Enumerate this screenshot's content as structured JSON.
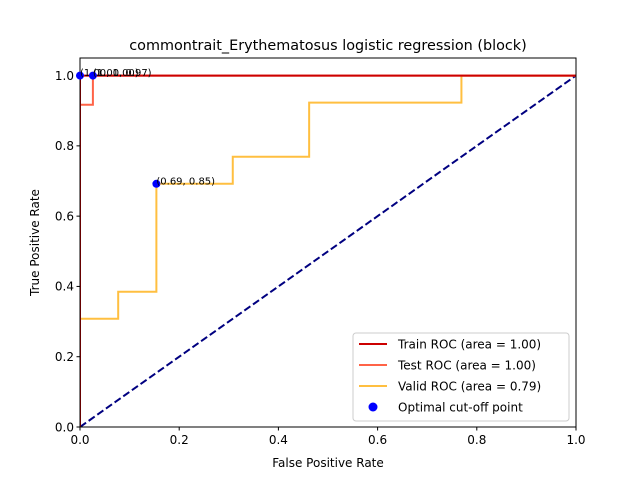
{
  "chart_data": {
    "type": "line",
    "title": "commontrait_Erythematosus logistic regression (block)",
    "xlabel": "False Positive Rate",
    "ylabel": "True Positive Rate",
    "xlim": [
      0.0,
      1.0
    ],
    "ylim": [
      0.0,
      1.05
    ],
    "xticks": [
      "0.0",
      "0.2",
      "0.4",
      "0.6",
      "0.8",
      "1.0"
    ],
    "yticks": [
      "0.0",
      "0.2",
      "0.4",
      "0.6",
      "0.8",
      "1.0"
    ],
    "grid": false,
    "legend_position": "lower-right",
    "series": [
      {
        "name": "Train ROC (area = 1.00)",
        "color": "#cc0000",
        "x": [
          0.0,
          0.0,
          1.0
        ],
        "y": [
          0.0,
          1.0,
          1.0
        ]
      },
      {
        "name": "Test ROC (area = 1.00)",
        "color": "#ff6347",
        "x": [
          0.0,
          0.0,
          0.026,
          0.026,
          1.0
        ],
        "y": [
          0.0,
          0.917,
          0.917,
          1.0,
          1.0
        ]
      },
      {
        "name": "Valid ROC (area = 0.79)",
        "color": "#ffbf40",
        "x": [
          0.0,
          0.0,
          0.077,
          0.077,
          0.154,
          0.154,
          0.308,
          0.308,
          0.462,
          0.462,
          0.769,
          0.769,
          1.0
        ],
        "y": [
          0.0,
          0.308,
          0.308,
          0.385,
          0.385,
          0.692,
          0.692,
          0.769,
          0.769,
          0.923,
          0.923,
          1.0,
          1.0
        ]
      }
    ],
    "diagonal": {
      "color": "#000080",
      "x": [
        0.0,
        1.0
      ],
      "y": [
        0.0,
        1.0
      ]
    },
    "optimal_points": {
      "name": "Optimal cut-off point",
      "color": "#0000ff",
      "points": [
        {
          "x": 0.0,
          "y": 1.0,
          "label": "(1.00, 1.00)"
        },
        {
          "x": 0.026,
          "y": 1.0,
          "label": "(1.00, 0.97)"
        },
        {
          "x": 0.154,
          "y": 0.692,
          "label": "(0.69, 0.85)"
        }
      ]
    }
  }
}
